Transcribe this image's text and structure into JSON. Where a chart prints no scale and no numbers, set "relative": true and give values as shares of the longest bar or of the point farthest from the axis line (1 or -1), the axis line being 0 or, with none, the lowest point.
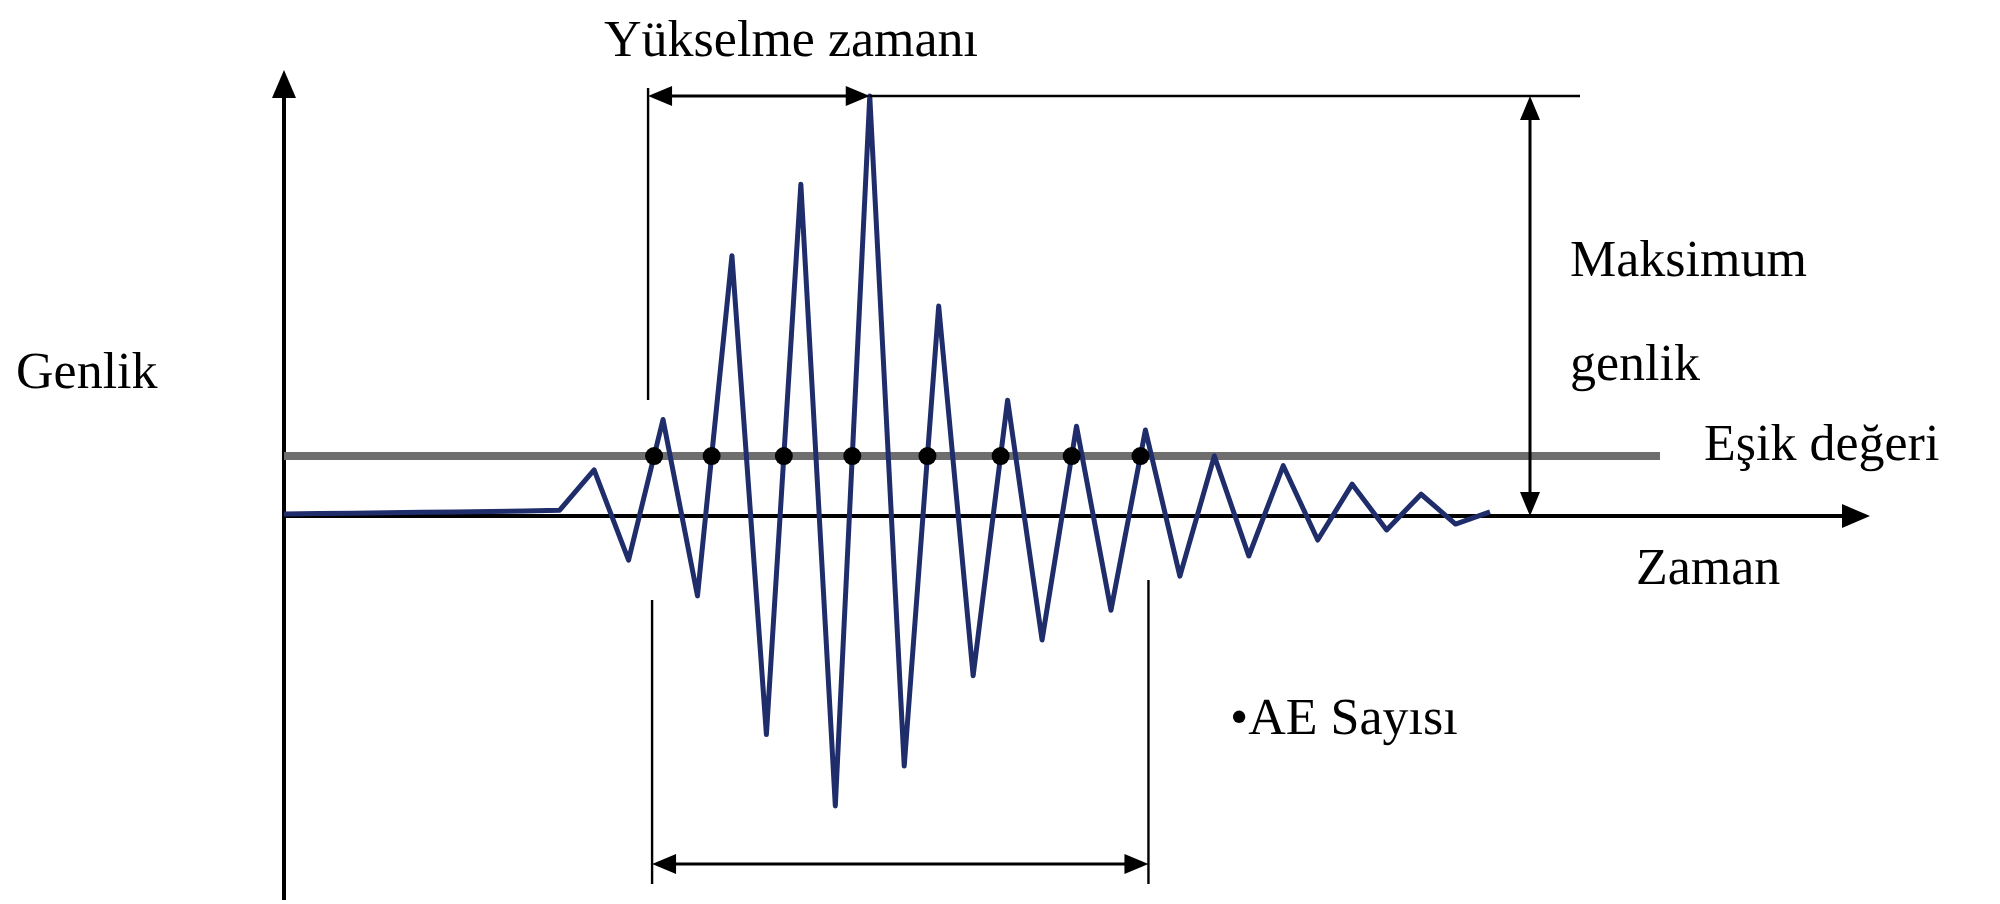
{
  "chart_data": {
    "type": "line",
    "relative": true,
    "xlabel": "Zaman",
    "ylabel": "Genlik",
    "tick_labels": false,
    "grid": false,
    "annotations": [
      "Yükselme zamanı",
      "Maksimum genlik",
      "•AE Sayısı"
    ],
    "ref_lines": [
      {
        "axis": "y",
        "value": 0.143,
        "label": "Eşik değeri",
        "color": "#6e6e6e"
      }
    ],
    "categories": [
      null,
      null,
      null,
      null,
      null,
      null,
      null,
      null,
      null,
      null,
      null,
      null,
      null,
      null,
      null,
      null,
      null,
      null,
      null,
      null,
      null,
      null,
      null,
      null,
      null,
      null,
      null,
      null,
      null,
      null,
      null,
      null,
      null,
      null,
      null,
      null
    ],
    "series": [
      {
        "color": "#1f2d6b",
        "values": [
          0.005,
          0.006,
          0.007,
          0.008,
          0.009,
          0.01,
          0.011,
          0.012,
          0.014,
          0.11,
          -0.105,
          0.23,
          -0.19,
          0.62,
          -0.52,
          0.79,
          -0.69,
          1.0,
          -0.595,
          0.5,
          -0.38,
          0.276,
          -0.295,
          0.214,
          -0.224,
          0.205,
          -0.143,
          0.143,
          -0.095,
          0.12,
          -0.057,
          0.076,
          -0.033,
          0.052,
          -0.019,
          0.01
        ]
      }
    ]
  }
}
